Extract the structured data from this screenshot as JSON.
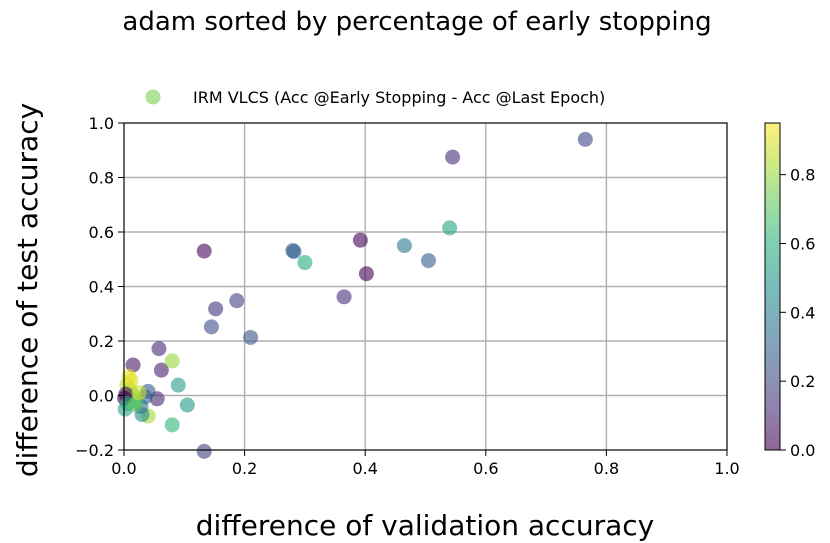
{
  "chart_data": {
    "type": "scatter",
    "title": "adam sorted by percentage of early stopping",
    "xlabel": "difference of validation accuracy",
    "ylabel": "difference of test accuracy",
    "xlim": [
      0.0,
      1.0
    ],
    "ylim": [
      -0.2,
      1.0
    ],
    "xticks": [
      "0.0",
      "0.2",
      "0.4",
      "0.6",
      "0.8",
      "1.0"
    ],
    "yticks": [
      "−0.2",
      "0.0",
      "0.2",
      "0.4",
      "0.6",
      "0.8",
      "1.0"
    ],
    "grid": true,
    "legend": {
      "position": "top",
      "label": "IRM VLCS (Acc @Early Stopping - Acc @Last Epoch)",
      "color": "#7ad151"
    },
    "colorbar": {
      "colormap": "viridis",
      "range": [
        0.0,
        0.95
      ],
      "ticks": [
        "0.0",
        "0.2",
        "0.4",
        "0.6",
        "0.8"
      ],
      "alpha": 0.6
    },
    "series": [
      {
        "points": [
          {
            "x": 0.765,
            "y": 0.94,
            "c": 0.2
          },
          {
            "x": 0.545,
            "y": 0.875,
            "c": 0.12
          },
          {
            "x": 0.54,
            "y": 0.615,
            "c": 0.55
          },
          {
            "x": 0.465,
            "y": 0.55,
            "c": 0.38
          },
          {
            "x": 0.505,
            "y": 0.495,
            "c": 0.28
          },
          {
            "x": 0.392,
            "y": 0.57,
            "c": 0.0
          },
          {
            "x": 0.402,
            "y": 0.447,
            "c": 0.0
          },
          {
            "x": 0.365,
            "y": 0.362,
            "c": 0.12
          },
          {
            "x": 0.28,
            "y": 0.532,
            "c": 0.3
          },
          {
            "x": 0.282,
            "y": 0.528,
            "c": 0.3
          },
          {
            "x": 0.3,
            "y": 0.488,
            "c": 0.58
          },
          {
            "x": 0.133,
            "y": 0.53,
            "c": 0.02
          },
          {
            "x": 0.187,
            "y": 0.348,
            "c": 0.18
          },
          {
            "x": 0.152,
            "y": 0.318,
            "c": 0.14
          },
          {
            "x": 0.145,
            "y": 0.252,
            "c": 0.22
          },
          {
            "x": 0.21,
            "y": 0.213,
            "c": 0.24
          },
          {
            "x": 0.058,
            "y": 0.172,
            "c": 0.1
          },
          {
            "x": 0.015,
            "y": 0.112,
            "c": 0.06
          },
          {
            "x": 0.062,
            "y": 0.093,
            "c": 0.08
          },
          {
            "x": 0.08,
            "y": 0.127,
            "c": 0.8
          },
          {
            "x": 0.09,
            "y": 0.038,
            "c": 0.52
          },
          {
            "x": 0.105,
            "y": -0.035,
            "c": 0.5
          },
          {
            "x": 0.08,
            "y": -0.108,
            "c": 0.62
          },
          {
            "x": 0.133,
            "y": -0.205,
            "c": 0.18
          },
          {
            "x": 0.055,
            "y": -0.012,
            "c": 0.1
          },
          {
            "x": 0.04,
            "y": 0.015,
            "c": 0.26
          },
          {
            "x": 0.035,
            "y": -0.005,
            "c": 0.3
          },
          {
            "x": 0.04,
            "y": -0.075,
            "c": 0.82
          },
          {
            "x": 0.03,
            "y": -0.07,
            "c": 0.45
          },
          {
            "x": 0.028,
            "y": -0.04,
            "c": 0.35
          },
          {
            "x": 0.02,
            "y": -0.02,
            "c": 0.65
          },
          {
            "x": 0.015,
            "y": 0.0,
            "c": 0.7
          },
          {
            "x": 0.01,
            "y": 0.02,
            "c": 0.8
          },
          {
            "x": 0.005,
            "y": 0.04,
            "c": 0.85
          },
          {
            "x": 0.012,
            "y": 0.055,
            "c": 0.9
          },
          {
            "x": 0.003,
            "y": 0.005,
            "c": 0.05
          },
          {
            "x": 0.001,
            "y": -0.01,
            "c": 0.0
          },
          {
            "x": 0.006,
            "y": -0.03,
            "c": 0.6
          },
          {
            "x": 0.002,
            "y": -0.05,
            "c": 0.55
          },
          {
            "x": 0.018,
            "y": -0.035,
            "c": 0.72
          },
          {
            "x": 0.025,
            "y": 0.01,
            "c": 0.88
          },
          {
            "x": 0.008,
            "y": 0.07,
            "c": 0.92
          }
        ]
      }
    ]
  }
}
